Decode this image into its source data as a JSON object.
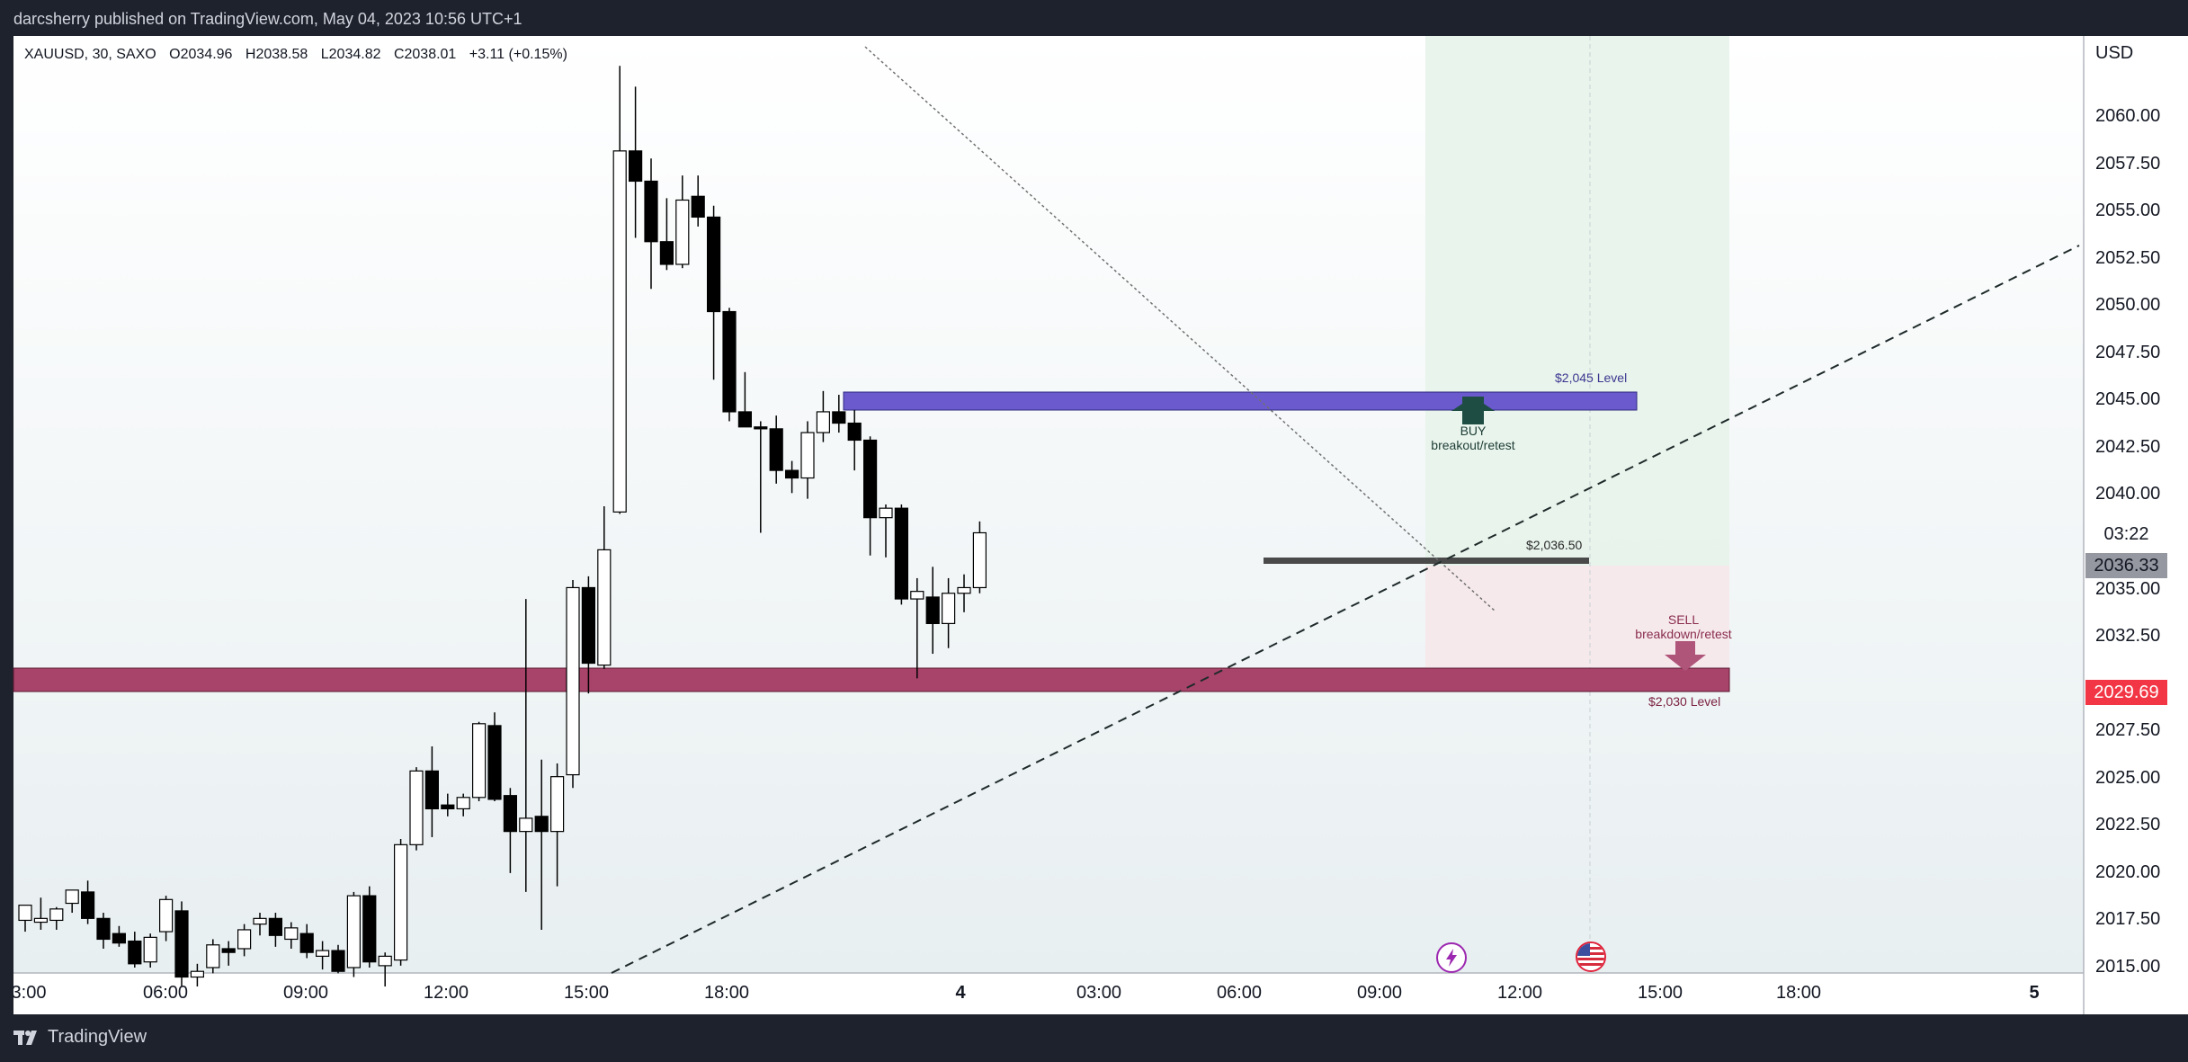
{
  "header": {
    "published": "darcsherry published on TradingView.com, May 04, 2023 10:56 UTC+1"
  },
  "footer": {
    "brand": "TradingView",
    "logo_icon": "tradingview-logo-icon"
  },
  "legend": {
    "symbol": "XAUUSD, 30, SAXO",
    "open": "O2034.96",
    "high": "H2038.58",
    "low": "L2034.82",
    "close": "C2038.01",
    "change": "+3.11 (+0.15%)"
  },
  "axis": {
    "currency": "USD",
    "price_ticks": [
      "2060.00",
      "2057.50",
      "2055.00",
      "2052.50",
      "2050.00",
      "2047.50",
      "2045.00",
      "2042.50",
      "2040.00",
      "2035.00",
      "2032.50",
      "2027.50",
      "2025.00",
      "2022.50",
      "2020.00",
      "2017.50",
      "2015.00"
    ],
    "time_ticks": [
      "3:00",
      "06:00",
      "09:00",
      "12:00",
      "15:00",
      "18:00",
      "4",
      "03:00",
      "06:00",
      "09:00",
      "12:00",
      "15:00",
      "18:00",
      "5"
    ]
  },
  "price_tags": {
    "countdown": "03:22",
    "last_price": "2036.33",
    "level_price": "2029.69"
  },
  "annotations": {
    "level_2045": "$2,045 Level",
    "level_2030": "$2,030 Level",
    "level_2036": "$2,036.50",
    "buy_title": "BUY",
    "buy_sub": "breakout/retest",
    "sell_title": "SELL",
    "sell_sub": "breakdown/retest"
  },
  "icons": {
    "event_icon": "lightning-event-icon",
    "flag_icon": "us-flag-icon"
  },
  "colors": {
    "up_body": "#ffffff",
    "down_body": "#000000",
    "zone_2045": "#6a5acd",
    "zone_2030": "#a8436a",
    "zone_2036": "#4a4a4a",
    "price_tag_red": "#f23645",
    "price_tag_gray": "#9598a1"
  },
  "chart_data": {
    "type": "candlestick",
    "symbol": "XAUUSD",
    "interval": "30",
    "ylim": [
      2015.0,
      2062.5
    ],
    "levels": [
      2045.0,
      2036.5,
      2030.0
    ],
    "x_tick_labels": [
      "3:00",
      "06:00",
      "09:00",
      "12:00",
      "15:00",
      "18:00",
      "4",
      "03:00",
      "06:00",
      "09:00",
      "12:00",
      "15:00",
      "18:00",
      "5"
    ],
    "candles": [
      {
        "o": 2017.5,
        "h": 2018.2,
        "l": 2016.9,
        "c": 2018.3
      },
      {
        "o": 2017.4,
        "h": 2018.7,
        "l": 2017.0,
        "c": 2017.6
      },
      {
        "o": 2017.5,
        "h": 2018.2,
        "l": 2017.0,
        "c": 2018.1
      },
      {
        "o": 2018.4,
        "h": 2019.0,
        "l": 2017.9,
        "c": 2019.1
      },
      {
        "o": 2019.0,
        "h": 2019.6,
        "l": 2017.3,
        "c": 2017.6
      },
      {
        "o": 2017.6,
        "h": 2017.9,
        "l": 2016.0,
        "c": 2016.5
      },
      {
        "o": 2016.8,
        "h": 2017.2,
        "l": 2016.1,
        "c": 2016.3
      },
      {
        "o": 2016.4,
        "h": 2016.9,
        "l": 2015.0,
        "c": 2015.2
      },
      {
        "o": 2015.3,
        "h": 2016.8,
        "l": 2015.0,
        "c": 2016.6
      },
      {
        "o": 2016.9,
        "h": 2018.8,
        "l": 2016.4,
        "c": 2018.6
      },
      {
        "o": 2018.0,
        "h": 2018.5,
        "l": 2014.0,
        "c": 2014.5
      },
      {
        "o": 2014.5,
        "h": 2015.2,
        "l": 2014.0,
        "c": 2014.8
      },
      {
        "o": 2015.0,
        "h": 2016.5,
        "l": 2014.7,
        "c": 2016.2
      },
      {
        "o": 2016.0,
        "h": 2016.4,
        "l": 2015.1,
        "c": 2015.8
      },
      {
        "o": 2016.0,
        "h": 2017.3,
        "l": 2015.6,
        "c": 2017.0
      },
      {
        "o": 2017.3,
        "h": 2017.9,
        "l": 2016.7,
        "c": 2017.6
      },
      {
        "o": 2017.6,
        "h": 2017.9,
        "l": 2016.1,
        "c": 2016.7
      },
      {
        "o": 2016.5,
        "h": 2017.4,
        "l": 2016.0,
        "c": 2017.1
      },
      {
        "o": 2016.8,
        "h": 2017.3,
        "l": 2015.5,
        "c": 2015.8
      },
      {
        "o": 2015.6,
        "h": 2016.4,
        "l": 2014.9,
        "c": 2015.9
      },
      {
        "o": 2015.9,
        "h": 2016.2,
        "l": 2014.7,
        "c": 2014.8
      },
      {
        "o": 2015.0,
        "h": 2019.0,
        "l": 2014.5,
        "c": 2018.8
      },
      {
        "o": 2018.8,
        "h": 2019.3,
        "l": 2015.0,
        "c": 2015.3
      },
      {
        "o": 2015.1,
        "h": 2015.8,
        "l": 2014.0,
        "c": 2015.6
      },
      {
        "o": 2015.4,
        "h": 2021.8,
        "l": 2015.1,
        "c": 2021.5
      },
      {
        "o": 2021.5,
        "h": 2025.6,
        "l": 2021.2,
        "c": 2025.4
      },
      {
        "o": 2025.4,
        "h": 2026.7,
        "l": 2021.9,
        "c": 2023.4
      },
      {
        "o": 2023.6,
        "h": 2024.2,
        "l": 2023.0,
        "c": 2023.4
      },
      {
        "o": 2023.4,
        "h": 2024.2,
        "l": 2023.0,
        "c": 2024.0
      },
      {
        "o": 2024.0,
        "h": 2028.0,
        "l": 2023.8,
        "c": 2027.9
      },
      {
        "o": 2027.8,
        "h": 2028.5,
        "l": 2023.8,
        "c": 2023.9
      },
      {
        "o": 2024.1,
        "h": 2024.5,
        "l": 2020.0,
        "c": 2022.2
      },
      {
        "o": 2022.2,
        "h": 2034.5,
        "l": 2019.0,
        "c": 2022.9
      },
      {
        "o": 2023.0,
        "h": 2026.0,
        "l": 2017.0,
        "c": 2022.2
      },
      {
        "o": 2022.2,
        "h": 2025.8,
        "l": 2019.3,
        "c": 2025.1
      },
      {
        "o": 2025.2,
        "h": 2035.5,
        "l": 2024.5,
        "c": 2035.1
      },
      {
        "o": 2035.1,
        "h": 2035.7,
        "l": 2029.5,
        "c": 2031.1
      },
      {
        "o": 2031.0,
        "h": 2039.4,
        "l": 2030.8,
        "c": 2037.1
      },
      {
        "o": 2039.1,
        "h": 2062.7,
        "l": 2039.0,
        "c": 2058.2
      },
      {
        "o": 2058.2,
        "h": 2061.6,
        "l": 2053.6,
        "c": 2056.6
      },
      {
        "o": 2056.6,
        "h": 2057.8,
        "l": 2050.9,
        "c": 2053.4
      },
      {
        "o": 2053.4,
        "h": 2055.7,
        "l": 2051.9,
        "c": 2052.2
      },
      {
        "o": 2052.2,
        "h": 2056.9,
        "l": 2052.0,
        "c": 2055.6
      },
      {
        "o": 2055.8,
        "h": 2056.9,
        "l": 2054.2,
        "c": 2054.7
      },
      {
        "o": 2054.7,
        "h": 2055.3,
        "l": 2046.1,
        "c": 2049.7
      },
      {
        "o": 2049.7,
        "h": 2049.9,
        "l": 2043.9,
        "c": 2044.4
      },
      {
        "o": 2044.4,
        "h": 2046.5,
        "l": 2043.8,
        "c": 2043.6
      },
      {
        "o": 2043.6,
        "h": 2043.9,
        "l": 2038.0,
        "c": 2043.5
      },
      {
        "o": 2043.5,
        "h": 2044.2,
        "l": 2040.6,
        "c": 2041.3
      },
      {
        "o": 2041.3,
        "h": 2041.8,
        "l": 2040.1,
        "c": 2040.9
      },
      {
        "o": 2040.9,
        "h": 2043.9,
        "l": 2039.8,
        "c": 2043.3
      },
      {
        "o": 2043.3,
        "h": 2045.5,
        "l": 2042.8,
        "c": 2044.4
      },
      {
        "o": 2044.4,
        "h": 2045.3,
        "l": 2043.3,
        "c": 2043.8
      },
      {
        "o": 2043.8,
        "h": 2044.5,
        "l": 2041.3,
        "c": 2042.9
      },
      {
        "o": 2042.9,
        "h": 2043.1,
        "l": 2036.8,
        "c": 2038.8
      },
      {
        "o": 2038.8,
        "h": 2039.5,
        "l": 2036.7,
        "c": 2039.3
      },
      {
        "o": 2039.3,
        "h": 2039.5,
        "l": 2034.2,
        "c": 2034.5
      },
      {
        "o": 2034.5,
        "h": 2035.6,
        "l": 2030.3,
        "c": 2034.9
      },
      {
        "o": 2034.6,
        "h": 2036.2,
        "l": 2031.6,
        "c": 2033.2
      },
      {
        "o": 2033.2,
        "h": 2035.6,
        "l": 2031.9,
        "c": 2034.8
      },
      {
        "o": 2034.8,
        "h": 2035.8,
        "l": 2033.8,
        "c": 2035.1
      },
      {
        "o": 2035.1,
        "h": 2038.6,
        "l": 2034.8,
        "c": 2038.0
      }
    ]
  }
}
